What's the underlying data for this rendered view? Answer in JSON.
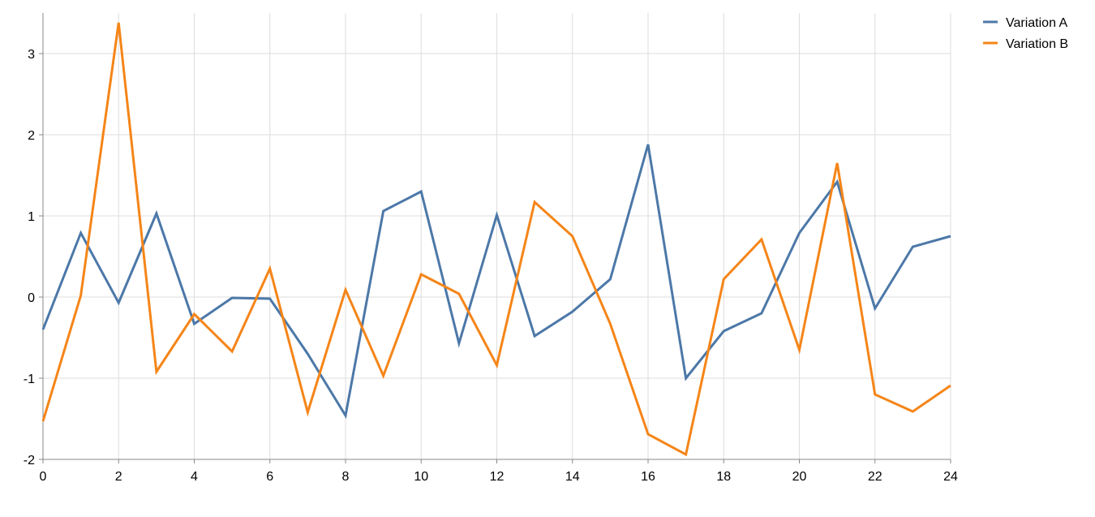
{
  "chart_data": {
    "type": "line",
    "x": [
      0,
      1,
      2,
      3,
      4,
      5,
      6,
      7,
      8,
      9,
      10,
      11,
      12,
      13,
      14,
      15,
      16,
      17,
      18,
      19,
      20,
      21,
      22,
      23,
      24
    ],
    "series": [
      {
        "name": "Variation A",
        "color": "#4c78a8",
        "values": [
          -0.4,
          0.79,
          -0.07,
          1.03,
          -0.33,
          -0.01,
          -0.02,
          -0.7,
          -1.46,
          1.06,
          1.3,
          -0.57,
          1.01,
          -0.48,
          -0.18,
          0.22,
          1.88,
          -1.0,
          -0.42,
          -0.2,
          0.79,
          1.42,
          -0.14,
          0.62,
          0.75
        ]
      },
      {
        "name": "Variation B",
        "color": "#f58518",
        "values": [
          -1.53,
          0.02,
          3.38,
          -0.92,
          -0.21,
          -0.67,
          0.35,
          -1.42,
          0.09,
          -0.97,
          0.28,
          0.04,
          -0.84,
          1.17,
          0.75,
          -0.33,
          -1.69,
          -1.94,
          0.22,
          0.71,
          -0.65,
          1.65,
          -1.2,
          -1.41,
          -1.09
        ]
      }
    ],
    "xlim": [
      0,
      24
    ],
    "xticks": [
      0,
      2,
      4,
      6,
      8,
      10,
      12,
      14,
      16,
      18,
      20,
      22,
      24
    ],
    "ylim": [
      -2,
      3.5
    ],
    "yticks": [
      -2,
      -1,
      0,
      1,
      2,
      3
    ],
    "grid": true,
    "legend": "top-right"
  }
}
